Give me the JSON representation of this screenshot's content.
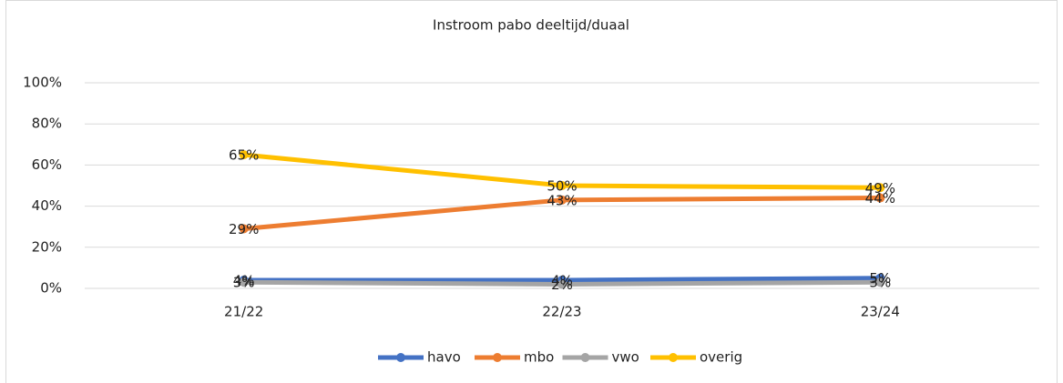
{
  "chart_data": {
    "type": "line",
    "title": "Instroom pabo deeltijd/duaal",
    "categories": [
      "21/22",
      "22/23",
      "23/24"
    ],
    "series": [
      {
        "name": "havo",
        "color": "#4472c4",
        "values": [
          4,
          4,
          5
        ],
        "value_labels": [
          "4%",
          "4%",
          "5%"
        ]
      },
      {
        "name": "mbo",
        "color": "#ed7d31",
        "values": [
          29,
          43,
          44
        ],
        "value_labels": [
          "29%",
          "43%",
          "44%"
        ]
      },
      {
        "name": "vwo",
        "color": "#a5a5a5",
        "values": [
          3,
          2,
          3
        ],
        "value_labels": [
          "3%",
          "2%",
          "3%"
        ]
      },
      {
        "name": "overig",
        "color": "#ffc000",
        "values": [
          65,
          50,
          49
        ],
        "value_labels": [
          "65%",
          "50%",
          "49%"
        ]
      }
    ],
    "ylim": [
      0,
      100
    ],
    "yticks": [
      {
        "value": 0,
        "label": "0%"
      },
      {
        "value": 20,
        "label": "20%"
      },
      {
        "value": 40,
        "label": "40%"
      },
      {
        "value": 60,
        "label": "60%"
      },
      {
        "value": 80,
        "label": "80%"
      },
      {
        "value": 100,
        "label": "100%"
      }
    ],
    "grid": true,
    "legend": "bottom"
  }
}
